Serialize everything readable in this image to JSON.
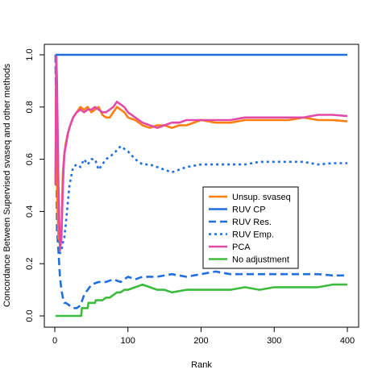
{
  "chart_data": {
    "type": "line",
    "xlabel": "Rank",
    "ylabel": "Concordance Between Supervised svaseq and other methods",
    "xlim": [
      0,
      400
    ],
    "ylim": [
      0,
      1
    ],
    "xticks": [
      0,
      100,
      200,
      300,
      400
    ],
    "yticks": [
      0.0,
      0.2,
      0.4,
      0.6,
      0.8,
      1.0
    ],
    "ytick_labels": [
      "0.0",
      "0.2",
      "0.4",
      "0.6",
      "0.8",
      "1.0"
    ],
    "grid": false,
    "legend_position": "center-right",
    "series": [
      {
        "name": "Unsup. svaseq",
        "color": "#ff7f0e",
        "dash": "solid",
        "x": [
          1,
          2,
          3,
          5,
          7,
          9,
          11,
          13,
          15,
          18,
          21,
          25,
          30,
          35,
          40,
          45,
          50,
          55,
          60,
          65,
          70,
          75,
          80,
          85,
          90,
          95,
          100,
          110,
          120,
          130,
          140,
          150,
          160,
          170,
          180,
          200,
          220,
          240,
          260,
          280,
          300,
          320,
          340,
          360,
          380,
          400
        ],
        "y": [
          0.5,
          1.0,
          0.5,
          0.3,
          0.28,
          0.3,
          0.55,
          0.62,
          0.66,
          0.7,
          0.73,
          0.76,
          0.78,
          0.8,
          0.79,
          0.8,
          0.78,
          0.79,
          0.8,
          0.77,
          0.76,
          0.76,
          0.78,
          0.8,
          0.79,
          0.78,
          0.76,
          0.75,
          0.73,
          0.72,
          0.73,
          0.73,
          0.72,
          0.73,
          0.73,
          0.75,
          0.74,
          0.74,
          0.75,
          0.75,
          0.75,
          0.75,
          0.76,
          0.75,
          0.75,
          0.745
        ]
      },
      {
        "name": "RUV CP",
        "color": "#1f6fe0",
        "dash": "solid",
        "x": [
          1,
          400
        ],
        "y": [
          1.0,
          1.0
        ]
      },
      {
        "name": "RUV Res.",
        "color": "#1f6fe0",
        "dash": "dashed",
        "x": [
          1,
          3,
          5,
          7,
          9,
          11,
          13,
          15,
          20,
          25,
          30,
          35,
          40,
          45,
          50,
          60,
          70,
          80,
          90,
          100,
          110,
          120,
          140,
          160,
          180,
          200,
          220,
          240,
          260,
          280,
          300,
          320,
          340,
          360,
          380,
          400
        ],
        "y": [
          1.0,
          0.33,
          0.25,
          0.15,
          0.1,
          0.07,
          0.05,
          0.05,
          0.04,
          0.03,
          0.03,
          0.04,
          0.08,
          0.1,
          0.12,
          0.13,
          0.13,
          0.14,
          0.13,
          0.15,
          0.14,
          0.15,
          0.15,
          0.16,
          0.15,
          0.16,
          0.17,
          0.16,
          0.16,
          0.16,
          0.16,
          0.16,
          0.16,
          0.16,
          0.155,
          0.155
        ]
      },
      {
        "name": "RUV Emp.",
        "color": "#1f6fe0",
        "dash": "dotted",
        "x": [
          1,
          3,
          5,
          7,
          9,
          11,
          13,
          15,
          20,
          25,
          30,
          35,
          40,
          45,
          50,
          55,
          60,
          70,
          80,
          90,
          100,
          110,
          120,
          130,
          140,
          150,
          160,
          180,
          200,
          220,
          240,
          260,
          280,
          300,
          320,
          340,
          360,
          380,
          400
        ],
        "y": [
          1.0,
          0.5,
          0.35,
          0.24,
          0.25,
          0.28,
          0.3,
          0.35,
          0.5,
          0.57,
          0.58,
          0.57,
          0.6,
          0.58,
          0.6,
          0.6,
          0.56,
          0.6,
          0.62,
          0.65,
          0.63,
          0.6,
          0.58,
          0.58,
          0.57,
          0.56,
          0.55,
          0.57,
          0.58,
          0.58,
          0.58,
          0.58,
          0.59,
          0.59,
          0.59,
          0.59,
          0.58,
          0.585,
          0.585
        ]
      },
      {
        "name": "PCA",
        "color": "#e34aa8",
        "dash": "solid",
        "x": [
          1,
          2,
          3,
          5,
          7,
          9,
          11,
          13,
          15,
          18,
          21,
          25,
          30,
          35,
          40,
          45,
          50,
          55,
          60,
          65,
          70,
          75,
          80,
          85,
          90,
          95,
          100,
          110,
          120,
          130,
          140,
          150,
          160,
          170,
          180,
          200,
          220,
          240,
          260,
          280,
          300,
          320,
          340,
          360,
          380,
          400
        ],
        "y": [
          0.5,
          1.0,
          0.9,
          0.5,
          0.25,
          0.3,
          0.5,
          0.62,
          0.65,
          0.7,
          0.73,
          0.76,
          0.78,
          0.79,
          0.78,
          0.79,
          0.79,
          0.8,
          0.79,
          0.78,
          0.78,
          0.79,
          0.8,
          0.82,
          0.81,
          0.8,
          0.78,
          0.76,
          0.74,
          0.73,
          0.72,
          0.73,
          0.74,
          0.74,
          0.75,
          0.75,
          0.75,
          0.75,
          0.76,
          0.76,
          0.76,
          0.76,
          0.76,
          0.77,
          0.77,
          0.765
        ]
      },
      {
        "name": "No adjustment",
        "color": "#3dbb3d",
        "dash": "solid",
        "x": [
          1,
          36,
          37,
          45,
          46,
          55,
          56,
          65,
          70,
          75,
          80,
          85,
          90,
          95,
          100,
          110,
          120,
          130,
          140,
          150,
          160,
          180,
          200,
          220,
          240,
          260,
          280,
          300,
          320,
          340,
          360,
          380,
          400
        ],
        "y": [
          0.0,
          0.0,
          0.03,
          0.03,
          0.05,
          0.05,
          0.06,
          0.06,
          0.07,
          0.07,
          0.08,
          0.09,
          0.09,
          0.1,
          0.1,
          0.11,
          0.12,
          0.11,
          0.1,
          0.1,
          0.09,
          0.1,
          0.1,
          0.1,
          0.1,
          0.11,
          0.1,
          0.11,
          0.11,
          0.11,
          0.11,
          0.12,
          0.12
        ]
      }
    ]
  }
}
